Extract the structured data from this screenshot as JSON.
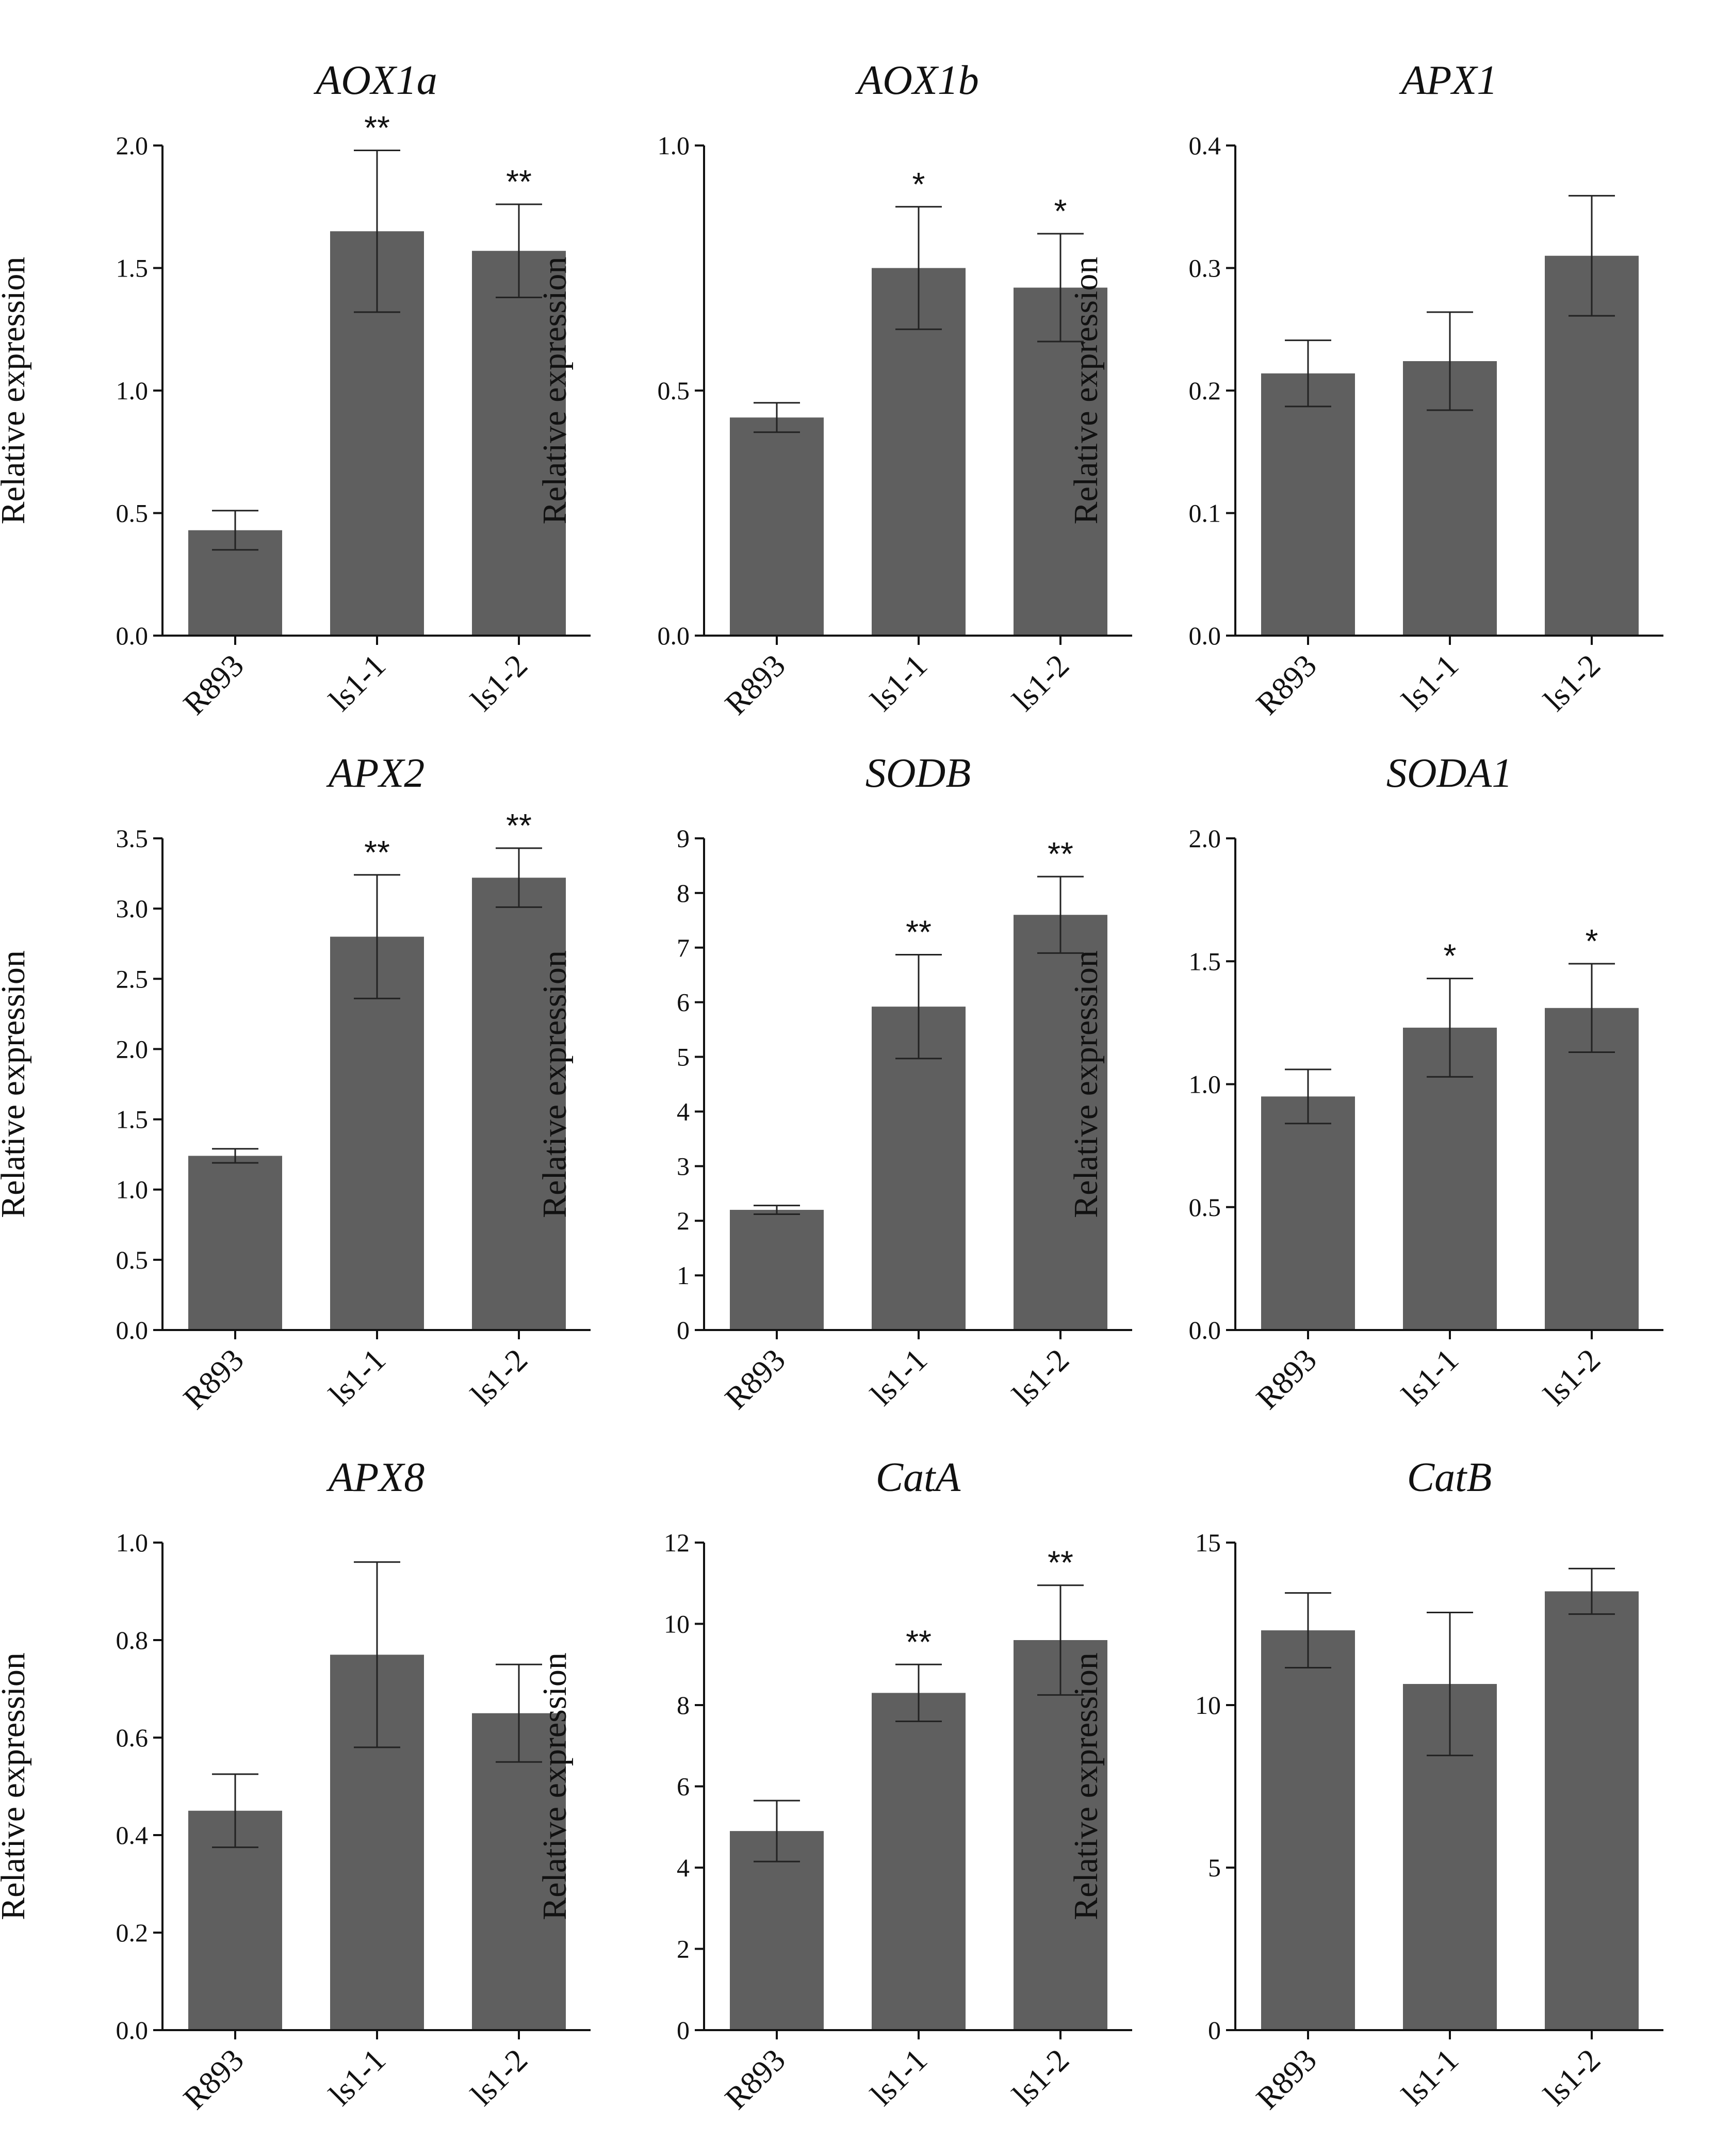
{
  "figure": {
    "bar_color": "#5f5f5f",
    "axis_color": "#111111"
  },
  "chart_data": [
    {
      "type": "bar",
      "title": "AOX1a",
      "categories": [
        "R893",
        "ls1-1",
        "ls1-2"
      ],
      "values": [
        0.43,
        1.65,
        1.57
      ],
      "errors": [
        0.08,
        0.33,
        0.19
      ],
      "significance": [
        "",
        "**",
        "**"
      ],
      "ylabel": "Relative expression",
      "ylim": [
        0,
        2.0
      ],
      "yticks": [
        0.0,
        0.5,
        1.0,
        1.5,
        2.0
      ],
      "ytick_labels": [
        "0.0",
        "0.5",
        "1.0",
        "1.5",
        "2.0"
      ]
    },
    {
      "type": "bar",
      "title": "AOX1b",
      "categories": [
        "R893",
        "ls1-1",
        "ls1-2"
      ],
      "values": [
        0.445,
        0.75,
        0.71
      ],
      "errors": [
        0.03,
        0.125,
        0.11
      ],
      "significance": [
        "",
        "*",
        "*"
      ],
      "ylabel": "Relative expression",
      "ylim": [
        0,
        1.0
      ],
      "yticks": [
        0.0,
        0.5,
        1.0
      ],
      "ytick_labels": [
        "0.0",
        "0.5",
        "1.0"
      ]
    },
    {
      "type": "bar",
      "title": "APX1",
      "categories": [
        "R893",
        "ls1-1",
        "ls1-2"
      ],
      "values": [
        0.214,
        0.224,
        0.31
      ],
      "errors": [
        0.027,
        0.04,
        0.049
      ],
      "significance": [
        "",
        "",
        ""
      ],
      "ylabel": "Relative expression",
      "ylim": [
        0,
        0.4
      ],
      "yticks": [
        0.0,
        0.1,
        0.2,
        0.3,
        0.4
      ],
      "ytick_labels": [
        "0.0",
        "0.1",
        "0.2",
        "0.3",
        "0.4"
      ]
    },
    {
      "type": "bar",
      "title": "APX2",
      "categories": [
        "R893",
        "ls1-1",
        "ls1-2"
      ],
      "values": [
        1.24,
        2.8,
        3.22
      ],
      "errors": [
        0.05,
        0.44,
        0.21
      ],
      "significance": [
        "",
        "**",
        "**"
      ],
      "ylabel": "Relative expression",
      "ylim": [
        0,
        3.5
      ],
      "yticks": [
        0.0,
        0.5,
        1.0,
        1.5,
        2.0,
        2.5,
        3.0,
        3.5
      ],
      "ytick_labels": [
        "0.0",
        "0.5",
        "1.0",
        "1.5",
        "2.0",
        "2.5",
        "3.0",
        "3.5"
      ]
    },
    {
      "type": "bar",
      "title": "SODB",
      "categories": [
        "R893",
        "ls1-1",
        "ls1-2"
      ],
      "values": [
        2.2,
        5.92,
        7.6
      ],
      "errors": [
        0.08,
        0.95,
        0.7
      ],
      "significance": [
        "",
        "**",
        "**"
      ],
      "ylabel": "Relative expression",
      "ylim": [
        0,
        9
      ],
      "yticks": [
        0,
        1,
        2,
        3,
        4,
        5,
        6,
        7,
        8,
        9
      ],
      "ytick_labels": [
        "0",
        "1",
        "2",
        "3",
        "4",
        "5",
        "6",
        "7",
        "8",
        "9"
      ]
    },
    {
      "type": "bar",
      "title": "SODA1",
      "categories": [
        "R893",
        "ls1-1",
        "ls1-2"
      ],
      "values": [
        0.95,
        1.23,
        1.31
      ],
      "errors": [
        0.11,
        0.2,
        0.18
      ],
      "significance": [
        "",
        "*",
        "*"
      ],
      "ylabel": "Relative expression",
      "ylim": [
        0,
        2.0
      ],
      "yticks": [
        0.0,
        0.5,
        1.0,
        1.5,
        2.0
      ],
      "ytick_labels": [
        "0.0",
        "0.5",
        "1.0",
        "1.5",
        "2.0"
      ]
    },
    {
      "type": "bar",
      "title": "APX8",
      "categories": [
        "R893",
        "ls1-1",
        "ls1-2"
      ],
      "values": [
        0.45,
        0.77,
        0.65
      ],
      "errors": [
        0.075,
        0.19,
        0.1
      ],
      "significance": [
        "",
        "",
        ""
      ],
      "ylabel": "Relative expression",
      "ylim": [
        0,
        1.0
      ],
      "yticks": [
        0.0,
        0.2,
        0.4,
        0.6,
        0.8,
        1.0
      ],
      "ytick_labels": [
        "0.0",
        "0.2",
        "0.4",
        "0.6",
        "0.8",
        "1.0"
      ]
    },
    {
      "type": "bar",
      "title": "CatA",
      "categories": [
        "R893",
        "ls1-1",
        "ls1-2"
      ],
      "values": [
        4.9,
        8.3,
        9.6
      ],
      "errors": [
        0.75,
        0.7,
        1.35
      ],
      "significance": [
        "",
        "**",
        "**"
      ],
      "ylabel": "Relative expression",
      "ylim": [
        0,
        12
      ],
      "yticks": [
        0,
        2,
        4,
        6,
        8,
        10,
        12
      ],
      "ytick_labels": [
        "0",
        "2",
        "4",
        "6",
        "8",
        "10",
        "12"
      ]
    },
    {
      "type": "bar",
      "title": "CatB",
      "categories": [
        "R893",
        "ls1-1",
        "ls1-2"
      ],
      "values": [
        12.3,
        10.65,
        13.5
      ],
      "errors": [
        1.15,
        2.2,
        0.7
      ],
      "significance": [
        "",
        "",
        ""
      ],
      "ylabel": "Relative expression",
      "ylim": [
        0,
        15
      ],
      "yticks": [
        0,
        5,
        10,
        15
      ],
      "ytick_labels": [
        "0",
        "5",
        "10",
        "15"
      ]
    }
  ]
}
